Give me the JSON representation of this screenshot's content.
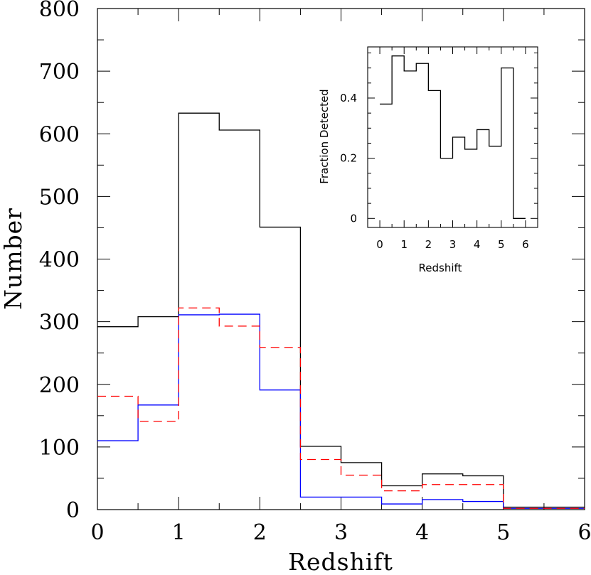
{
  "chart_data": [
    {
      "type": "histogram",
      "xlabel": "Redshift",
      "ylabel": "Number",
      "xlim": [
        0,
        6
      ],
      "ylim": [
        0,
        800
      ],
      "x_ticks": [
        "0",
        "1",
        "2",
        "3",
        "4",
        "5",
        "6"
      ],
      "y_ticks": [
        "0",
        "100",
        "200",
        "300",
        "400",
        "500",
        "600",
        "700",
        "800"
      ],
      "bin_edges": [
        0,
        0.5,
        1,
        1.5,
        2,
        2.5,
        3,
        3.5,
        4,
        4.5,
        5,
        5.5,
        6
      ],
      "series": [
        {
          "color": "#000000",
          "style": "solid",
          "values": [
            292,
            308,
            633,
            606,
            451,
            101,
            75,
            38,
            57,
            54,
            4,
            4
          ]
        },
        {
          "color": "#0000ff",
          "style": "solid",
          "values": [
            110,
            167,
            311,
            312,
            191,
            20,
            20,
            9,
            16,
            13,
            2,
            2
          ]
        },
        {
          "color": "#ff0000",
          "style": "dashed",
          "values": [
            181,
            141,
            322,
            293,
            259,
            80,
            55,
            30,
            40,
            40,
            2,
            2
          ]
        }
      ]
    },
    {
      "type": "histogram",
      "xlabel": "Redshift",
      "ylabel": "Fraction Detected",
      "xlim": [
        -0.5,
        6.5
      ],
      "ylim": [
        -0.03,
        0.57
      ],
      "x_ticks": [
        "0",
        "1",
        "2",
        "3",
        "4",
        "5",
        "6"
      ],
      "y_ticks": [
        "0",
        "0.2",
        "0.4"
      ],
      "bin_edges": [
        0,
        0.5,
        1,
        1.5,
        2,
        2.5,
        3,
        3.5,
        4,
        4.5,
        5,
        5.5,
        6
      ],
      "series": [
        {
          "color": "#000000",
          "style": "solid",
          "values": [
            0.38,
            0.54,
            0.49,
            0.515,
            0.425,
            0.2,
            0.27,
            0.23,
            0.295,
            0.24,
            0.5,
            0
          ]
        }
      ]
    }
  ]
}
